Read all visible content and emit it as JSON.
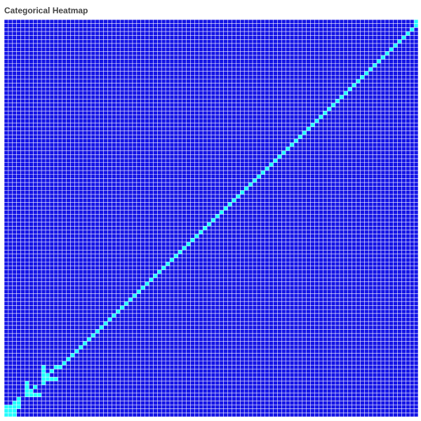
{
  "chart_data": {
    "type": "heatmap",
    "title": "Categorical Heatmap",
    "xlabel": "",
    "ylabel": "",
    "grid": true,
    "grid_count": 100,
    "colors": {
      "background_cell": "#1414e6",
      "highlight_cell": "#22fdfd",
      "gridline": "#ffffff",
      "title_text": "#444444"
    },
    "cells_note_origin": "bottom-left",
    "default_category": "background",
    "highlight_category": "highlight",
    "highlight_cells": [
      [
        0,
        0
      ],
      [
        1,
        0
      ],
      [
        2,
        0
      ],
      [
        0,
        1
      ],
      [
        1,
        1
      ],
      [
        2,
        1
      ],
      [
        0,
        2
      ],
      [
        1,
        2
      ],
      [
        2,
        2
      ],
      [
        3,
        2
      ],
      [
        2,
        3
      ],
      [
        3,
        3
      ],
      [
        3,
        4
      ],
      [
        5,
        5
      ],
      [
        6,
        5
      ],
      [
        7,
        5
      ],
      [
        8,
        5
      ],
      [
        5,
        6
      ],
      [
        6,
        6
      ],
      [
        5,
        7
      ],
      [
        7,
        7
      ],
      [
        5,
        8
      ],
      [
        9,
        8
      ],
      [
        9,
        9
      ],
      [
        10,
        9
      ],
      [
        11,
        9
      ],
      [
        12,
        9
      ],
      [
        9,
        10
      ],
      [
        10,
        10
      ],
      [
        9,
        11
      ],
      [
        11,
        11
      ],
      [
        9,
        12
      ],
      [
        12,
        12
      ],
      [
        13,
        12
      ],
      [
        14,
        13
      ],
      [
        15,
        14
      ],
      [
        16,
        15
      ],
      [
        17,
        16
      ],
      [
        18,
        17
      ],
      [
        19,
        18
      ],
      [
        20,
        19
      ],
      [
        21,
        20
      ],
      [
        22,
        21
      ],
      [
        23,
        22
      ],
      [
        24,
        23
      ],
      [
        25,
        24
      ],
      [
        26,
        25
      ],
      [
        27,
        26
      ],
      [
        28,
        27
      ],
      [
        29,
        28
      ],
      [
        30,
        29
      ],
      [
        31,
        30
      ],
      [
        32,
        31
      ],
      [
        33,
        32
      ],
      [
        34,
        33
      ],
      [
        35,
        34
      ],
      [
        36,
        35
      ],
      [
        37,
        36
      ],
      [
        38,
        37
      ],
      [
        39,
        38
      ],
      [
        40,
        39
      ],
      [
        41,
        40
      ],
      [
        42,
        41
      ],
      [
        43,
        42
      ],
      [
        44,
        43
      ],
      [
        45,
        44
      ],
      [
        46,
        45
      ],
      [
        47,
        46
      ],
      [
        48,
        47
      ],
      [
        49,
        48
      ],
      [
        50,
        49
      ],
      [
        51,
        50
      ],
      [
        52,
        51
      ],
      [
        53,
        52
      ],
      [
        54,
        53
      ],
      [
        55,
        54
      ],
      [
        56,
        55
      ],
      [
        57,
        56
      ],
      [
        58,
        57
      ],
      [
        59,
        58
      ],
      [
        60,
        59
      ],
      [
        61,
        60
      ],
      [
        62,
        61
      ],
      [
        63,
        62
      ],
      [
        64,
        63
      ],
      [
        65,
        64
      ],
      [
        66,
        65
      ],
      [
        67,
        66
      ],
      [
        68,
        67
      ],
      [
        69,
        68
      ],
      [
        70,
        69
      ],
      [
        71,
        70
      ],
      [
        72,
        71
      ],
      [
        73,
        72
      ],
      [
        74,
        73
      ],
      [
        75,
        74
      ],
      [
        76,
        75
      ],
      [
        77,
        76
      ],
      [
        78,
        77
      ],
      [
        79,
        78
      ],
      [
        80,
        79
      ],
      [
        81,
        80
      ],
      [
        82,
        81
      ],
      [
        83,
        82
      ],
      [
        84,
        83
      ],
      [
        85,
        84
      ],
      [
        86,
        85
      ],
      [
        87,
        86
      ],
      [
        88,
        87
      ],
      [
        89,
        88
      ],
      [
        90,
        89
      ],
      [
        91,
        90
      ],
      [
        92,
        91
      ],
      [
        93,
        92
      ],
      [
        94,
        93
      ],
      [
        95,
        94
      ],
      [
        96,
        95
      ],
      [
        97,
        96
      ],
      [
        98,
        97
      ],
      [
        99,
        98
      ],
      [
        99,
        99
      ]
    ]
  }
}
